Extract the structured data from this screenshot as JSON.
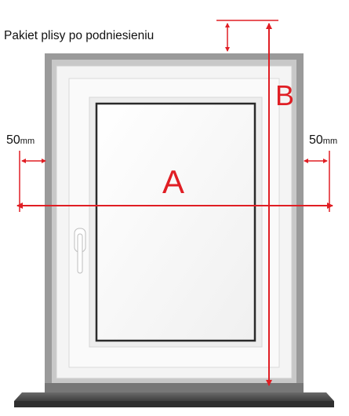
{
  "caption": "Pakiet plisy po podniesieniu",
  "dimension_a": "A",
  "dimension_b": "B",
  "margin_left": {
    "value": "50",
    "unit": "mm"
  },
  "margin_right": {
    "value": "50",
    "unit": "mm"
  },
  "colors": {
    "arrow": "#e01e24",
    "wall": "#9a9a9a",
    "frame": "#f2f2f2",
    "sill": "#555555"
  }
}
